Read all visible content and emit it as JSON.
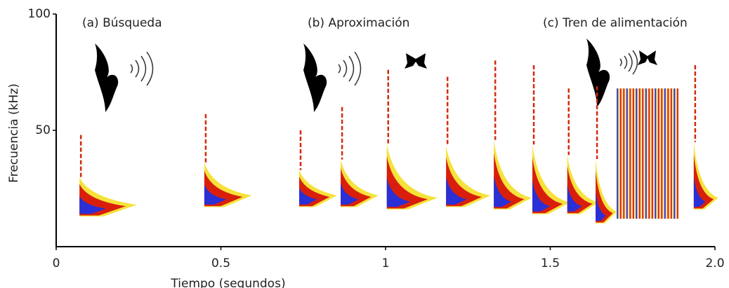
{
  "chart_data": {
    "type": "spectrogram",
    "xlabel": "Tiempo (segundos)",
    "ylabel": "Frecuencia (kHz)",
    "xlim": [
      0,
      2
    ],
    "xticks": [
      0,
      0.5,
      1,
      1.5,
      {
        "value": 2,
        "label": "2.0"
      }
    ],
    "ylim": [
      0,
      100
    ],
    "yticks": [
      50,
      100
    ],
    "annotations": [
      "(a) Búsqueda",
      "(b) Aproximación",
      "(c) Tren de alimentación"
    ],
    "calls": [
      {
        "time": 0.075,
        "duration": 0.17,
        "fmax": 48,
        "fmin": 15
      },
      {
        "time": 0.454,
        "duration": 0.14,
        "fmax": 57,
        "fmin": 19
      },
      {
        "time": 0.742,
        "duration": 0.11,
        "fmax": 50,
        "fmin": 19
      },
      {
        "time": 0.868,
        "duration": 0.11,
        "fmax": 60,
        "fmin": 19
      },
      {
        "time": 1.008,
        "duration": 0.15,
        "fmax": 76,
        "fmin": 18
      },
      {
        "time": 1.188,
        "duration": 0.13,
        "fmax": 73,
        "fmin": 19
      },
      {
        "time": 1.333,
        "duration": 0.11,
        "fmax": 80,
        "fmin": 18
      },
      {
        "time": 1.45,
        "duration": 0.11,
        "fmax": 78,
        "fmin": 16
      },
      {
        "time": 1.556,
        "duration": 0.09,
        "fmax": 68,
        "fmin": 16
      },
      {
        "time": 1.642,
        "duration": 0.06,
        "fmax": 69,
        "fmin": 12
      },
      {
        "time": 1.94,
        "duration": 0.07,
        "fmax": 78,
        "fmin": 18
      }
    ],
    "buzz": {
      "start": 1.7,
      "end": 1.89,
      "fmin": 12,
      "fmax": 68
    }
  }
}
